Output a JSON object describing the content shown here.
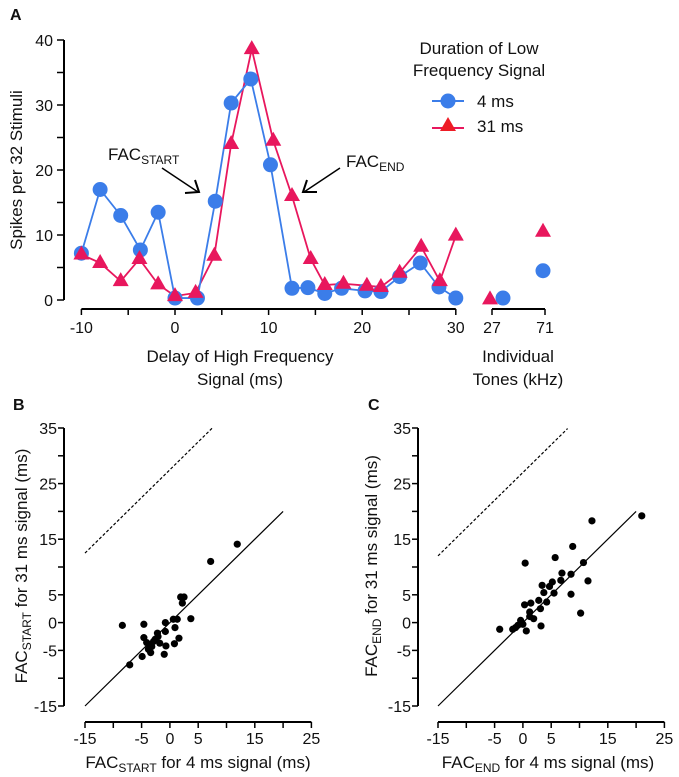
{
  "colors": {
    "series_4ms": "#3b7de9",
    "series_31ms": "#e8175d",
    "scatter": "#000000"
  },
  "chart_data": [
    {
      "panel": "A",
      "type": "line",
      "ylabel": "Spikes per 32 Stimuli",
      "xlabel_lines": [
        "Delay of High Frequency",
        "Signal (ms)"
      ],
      "xlabel2_lines": [
        "Individual",
        "Tones (kHz)"
      ],
      "xlim": [
        -10,
        30
      ],
      "ylim": [
        0,
        40
      ],
      "xticks": [
        -10,
        0,
        10,
        20,
        30
      ],
      "yticks": [
        0,
        10,
        20,
        30,
        40
      ],
      "individual_tone_labels": [
        "27",
        "71"
      ],
      "legend": {
        "title_lines": [
          "Duration of Low",
          "Frequency Signal"
        ],
        "position": "top-right"
      },
      "series": [
        {
          "name": "4 ms",
          "marker": "circle",
          "x": [
            -10,
            -8,
            -5.8,
            -3.7,
            -1.8,
            0,
            2.4,
            4.3,
            6,
            8.1,
            10.2,
            12.5,
            14.2,
            16,
            17.8,
            20.3,
            22,
            24,
            26.2,
            28.2,
            30
          ],
          "y": [
            7.2,
            17,
            13,
            7.7,
            13.5,
            0.3,
            0.3,
            15.2,
            30.3,
            34,
            20.8,
            1.8,
            1.9,
            1,
            1.8,
            1.4,
            1.3,
            3.6,
            5.7,
            2,
            0.3
          ],
          "tones": [
            0.3,
            4.5
          ]
        },
        {
          "name": "31 ms",
          "marker": "triangle",
          "x": [
            -10,
            -8,
            -5.8,
            -3.8,
            -1.8,
            0,
            2.2,
            4.2,
            6,
            8.2,
            10.5,
            12.5,
            14.5,
            16,
            18,
            20.5,
            22,
            24,
            26.3,
            28.3,
            30
          ],
          "y": [
            7,
            5.7,
            2.9,
            6.3,
            2.4,
            0.6,
            1.1,
            6.8,
            24,
            38.6,
            24.5,
            16,
            6.3,
            2.3,
            2.5,
            2.2,
            2,
            4.2,
            8.2,
            2.9,
            9.9
          ],
          "tones": [
            0.1,
            10.5
          ]
        }
      ],
      "annotations": [
        {
          "main": "FAC",
          "sub": "START"
        },
        {
          "main": "FAC",
          "sub": "END"
        }
      ]
    },
    {
      "panel": "B",
      "type": "scatter",
      "xlabel": {
        "main": "FAC",
        "sub": "START",
        "rest": " for 4 ms signal (ms)"
      },
      "ylabel": {
        "main": "FAC",
        "sub": "START",
        "rest": " for 31 ms signal (ms)"
      },
      "xlim": [
        -15,
        25
      ],
      "ylim": [
        -15,
        35
      ],
      "xticks": [
        -15,
        -5,
        0,
        5,
        15,
        25
      ],
      "yticks": [
        35,
        25,
        15,
        5,
        0,
        -5,
        -15
      ],
      "unity_line": {
        "slope": 1,
        "offset": 0,
        "range": [
          -15,
          20
        ]
      },
      "dashed_line": {
        "slope": 1,
        "offset": 27.5,
        "range": [
          -15,
          7.6
        ]
      },
      "points": [
        [
          -8.4,
          -0.5
        ],
        [
          -4.6,
          -0.3
        ],
        [
          -4.6,
          -2.7
        ],
        [
          -7.1,
          -7.6
        ],
        [
          -4.9,
          -6.1
        ],
        [
          -3.4,
          -5.4
        ],
        [
          -3.8,
          -4.8
        ],
        [
          -3.5,
          -4
        ],
        [
          -2.9,
          -3.4
        ],
        [
          -2.6,
          -3
        ],
        [
          -2.2,
          -1.9
        ],
        [
          -2.1,
          -2.5
        ],
        [
          -1.8,
          -3.7
        ],
        [
          -0.8,
          0
        ],
        [
          -0.8,
          -1.6
        ],
        [
          -0.7,
          -4.2
        ],
        [
          -1,
          -5.7
        ],
        [
          0.6,
          0.6
        ],
        [
          1.3,
          0.6
        ],
        [
          0.9,
          -0.9
        ],
        [
          0.8,
          -3.8
        ],
        [
          1.6,
          -2.8
        ],
        [
          3.7,
          0.7
        ],
        [
          1.9,
          4.6
        ],
        [
          2.5,
          4.6
        ],
        [
          2.2,
          3.5
        ],
        [
          7.2,
          11
        ],
        [
          11.9,
          14.1
        ],
        [
          -3.2,
          -4.3
        ],
        [
          -4.1,
          -3.6
        ]
      ]
    },
    {
      "panel": "C",
      "type": "scatter",
      "xlabel": {
        "main": "FAC",
        "sub": "END",
        "rest": " for 4 ms signal (ms)"
      },
      "ylabel": {
        "main": "FAC",
        "sub": "END",
        "rest": " for 31 ms signal (ms)"
      },
      "xlim": [
        -15,
        25
      ],
      "ylim": [
        -15,
        35
      ],
      "xticks": [
        -15,
        -5,
        0,
        5,
        15,
        25
      ],
      "yticks": [
        35,
        25,
        15,
        5,
        0,
        -5,
        -15
      ],
      "unity_line": {
        "slope": 1,
        "offset": 0,
        "range": [
          -15,
          20
        ]
      },
      "dashed_line": {
        "slope": 1,
        "offset": 27,
        "range": [
          -15,
          7.9
        ]
      },
      "points": [
        [
          -4.1,
          -1.2
        ],
        [
          -1.8,
          -1.2
        ],
        [
          -1.3,
          -0.9
        ],
        [
          -0.9,
          -0.5
        ],
        [
          -0.4,
          0.4
        ],
        [
          0,
          -0.3
        ],
        [
          0.6,
          -1.5
        ],
        [
          0.3,
          3.2
        ],
        [
          1.4,
          3.5
        ],
        [
          1.2,
          1.9
        ],
        [
          1.2,
          1.1
        ],
        [
          1.9,
          0.7
        ],
        [
          2.8,
          4
        ],
        [
          3.1,
          2.5
        ],
        [
          3.2,
          -0.6
        ],
        [
          3.4,
          6.7
        ],
        [
          3.7,
          5.4
        ],
        [
          4.2,
          3.7
        ],
        [
          4.7,
          6.5
        ],
        [
          5.2,
          7.3
        ],
        [
          5.5,
          5.3
        ],
        [
          5.7,
          11.7
        ],
        [
          6.7,
          7.6
        ],
        [
          6.9,
          8.9
        ],
        [
          8.5,
          8.7
        ],
        [
          8.5,
          5.1
        ],
        [
          8.8,
          13.7
        ],
        [
          10.2,
          1.7
        ],
        [
          10.7,
          10.8
        ],
        [
          11.5,
          7.5
        ],
        [
          12.2,
          18.3
        ],
        [
          0.4,
          10.7
        ],
        [
          21,
          19.2
        ]
      ]
    }
  ]
}
